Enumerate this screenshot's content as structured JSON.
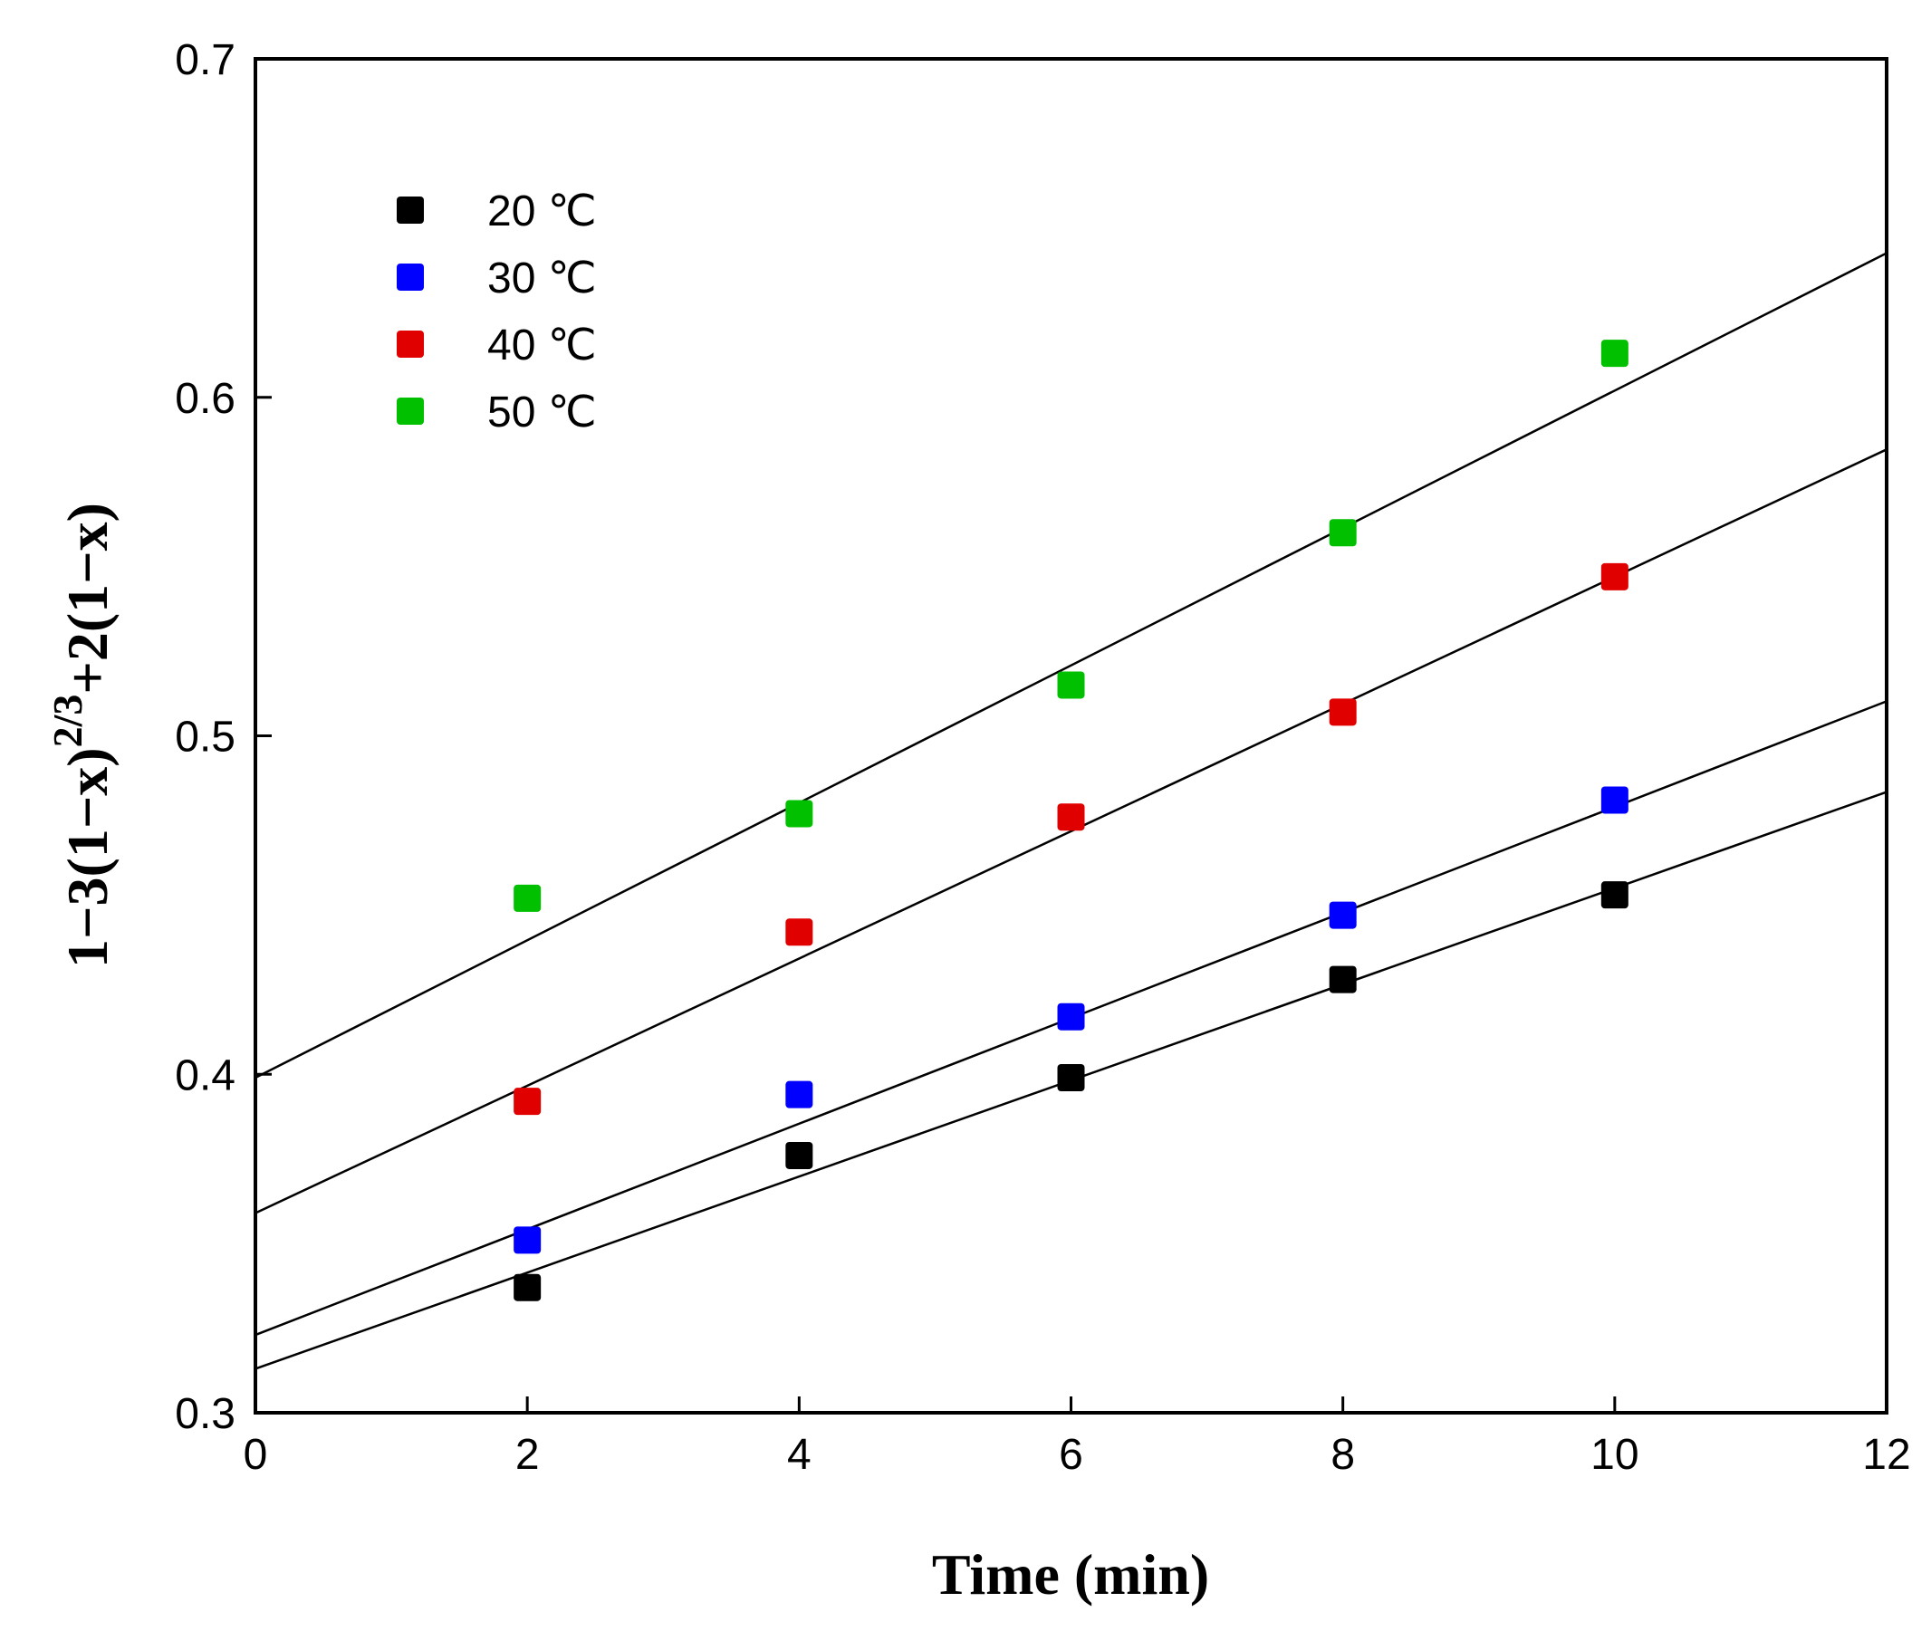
{
  "chart_data": {
    "type": "scatter",
    "title": "",
    "xlabel": "Time (min)",
    "ylabel": {
      "part1": "1−3(1−x)",
      "superscript": "2/3",
      "part2": "+2(1−x)"
    },
    "xlim": [
      0,
      12
    ],
    "ylim": [
      0.3,
      0.7
    ],
    "xticks": [
      0,
      2,
      4,
      6,
      8,
      10,
      12
    ],
    "xtick_labels": [
      "0",
      "2",
      "4",
      "6",
      "8",
      "10",
      "12"
    ],
    "yticks": [
      0.3,
      0.4,
      0.5,
      0.6,
      0.7
    ],
    "ytick_labels": [
      "0.3",
      "0.4",
      "0.5",
      "0.6",
      "0.7"
    ],
    "grid": false,
    "legend_position": "top-left",
    "series": [
      {
        "name": "20 ℃",
        "color": "#000000",
        "x": [
          2,
          4,
          6,
          8,
          10
        ],
        "y": [
          0.337,
          0.376,
          0.399,
          0.428,
          0.453
        ],
        "fit": {
          "intercept": 0.313,
          "slope": 0.0142
        }
      },
      {
        "name": "30 ℃",
        "color": "#0000ff",
        "x": [
          2,
          4,
          6,
          8,
          10
        ],
        "y": [
          0.351,
          0.394,
          0.417,
          0.447,
          0.481
        ],
        "fit": {
          "intercept": 0.323,
          "slope": 0.0156
        }
      },
      {
        "name": "40 ℃",
        "color": "#e00000",
        "x": [
          2,
          4,
          6,
          8,
          10
        ],
        "y": [
          0.392,
          0.442,
          0.476,
          0.507,
          0.547
        ],
        "fit": {
          "intercept": 0.359,
          "slope": 0.0188
        }
      },
      {
        "name": "50 ℃",
        "color": "#00c000",
        "x": [
          2,
          4,
          6,
          8,
          10
        ],
        "y": [
          0.452,
          0.477,
          0.515,
          0.56,
          0.613
        ],
        "fit": {
          "intercept": 0.399,
          "slope": 0.0203
        }
      }
    ]
  }
}
